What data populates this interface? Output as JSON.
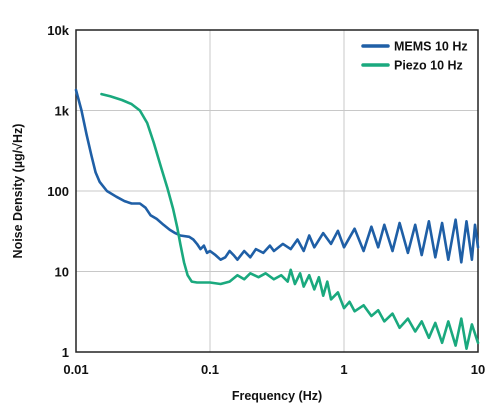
{
  "chart_data": {
    "type": "line",
    "xlabel": "Frequency (Hz)",
    "ylabel": "Noise Density (µg/√Hz)",
    "x_scale": "log",
    "y_scale": "log",
    "xlim": [
      0.01,
      10
    ],
    "ylim": [
      1,
      10000
    ],
    "grid": true,
    "legend_position": "top-right",
    "x_ticks": [
      {
        "value": 0.01,
        "label": "0.01"
      },
      {
        "value": 0.1,
        "label": "0.1"
      },
      {
        "value": 1,
        "label": "1"
      },
      {
        "value": 10,
        "label": "10"
      }
    ],
    "y_ticks": [
      {
        "value": 1,
        "label": "1"
      },
      {
        "value": 10,
        "label": "10"
      },
      {
        "value": 100,
        "label": "100"
      },
      {
        "value": 1000,
        "label": "1k"
      },
      {
        "value": 10000,
        "label": "10k"
      }
    ],
    "series": [
      {
        "name": "MEMS 10 Hz",
        "color": "#1f5fa6",
        "points": [
          [
            0.01,
            1800
          ],
          [
            0.011,
            1000
          ],
          [
            0.012,
            500
          ],
          [
            0.013,
            280
          ],
          [
            0.014,
            170
          ],
          [
            0.015,
            130
          ],
          [
            0.017,
            100
          ],
          [
            0.02,
            85
          ],
          [
            0.023,
            75
          ],
          [
            0.026,
            70
          ],
          [
            0.03,
            70
          ],
          [
            0.033,
            62
          ],
          [
            0.036,
            50
          ],
          [
            0.04,
            45
          ],
          [
            0.045,
            38
          ],
          [
            0.05,
            33
          ],
          [
            0.055,
            30
          ],
          [
            0.06,
            28
          ],
          [
            0.07,
            27
          ],
          [
            0.075,
            25
          ],
          [
            0.08,
            22
          ],
          [
            0.085,
            19
          ],
          [
            0.09,
            21
          ],
          [
            0.095,
            17
          ],
          [
            0.1,
            18
          ],
          [
            0.11,
            16
          ],
          [
            0.12,
            14
          ],
          [
            0.13,
            15
          ],
          [
            0.14,
            18
          ],
          [
            0.15,
            16
          ],
          [
            0.16,
            14
          ],
          [
            0.18,
            18
          ],
          [
            0.2,
            15
          ],
          [
            0.22,
            19
          ],
          [
            0.25,
            17
          ],
          [
            0.28,
            21
          ],
          [
            0.3,
            18
          ],
          [
            0.35,
            22
          ],
          [
            0.4,
            19
          ],
          [
            0.45,
            25
          ],
          [
            0.5,
            18
          ],
          [
            0.55,
            28
          ],
          [
            0.6,
            20
          ],
          [
            0.7,
            30
          ],
          [
            0.8,
            22
          ],
          [
            0.9,
            32
          ],
          [
            1.0,
            20
          ],
          [
            1.2,
            34
          ],
          [
            1.4,
            18
          ],
          [
            1.6,
            36
          ],
          [
            1.8,
            20
          ],
          [
            2.0,
            38
          ],
          [
            2.3,
            18
          ],
          [
            2.6,
            40
          ],
          [
            3.0,
            17
          ],
          [
            3.4,
            38
          ],
          [
            3.8,
            16
          ],
          [
            4.3,
            42
          ],
          [
            4.8,
            15
          ],
          [
            5.4,
            40
          ],
          [
            6.0,
            14
          ],
          [
            6.8,
            44
          ],
          [
            7.5,
            13
          ],
          [
            8.2,
            42
          ],
          [
            9.0,
            14
          ],
          [
            9.5,
            38
          ],
          [
            10,
            20
          ]
        ]
      },
      {
        "name": "Piezo 10 Hz",
        "color": "#1aa97e",
        "points": [
          [
            0.0155,
            1600
          ],
          [
            0.018,
            1500
          ],
          [
            0.022,
            1350
          ],
          [
            0.026,
            1200
          ],
          [
            0.03,
            1000
          ],
          [
            0.034,
            700
          ],
          [
            0.038,
            400
          ],
          [
            0.043,
            200
          ],
          [
            0.048,
            110
          ],
          [
            0.053,
            60
          ],
          [
            0.057,
            35
          ],
          [
            0.06,
            22
          ],
          [
            0.064,
            13
          ],
          [
            0.068,
            9
          ],
          [
            0.073,
            7.5
          ],
          [
            0.08,
            7.3
          ],
          [
            0.1,
            7.3
          ],
          [
            0.12,
            7.0
          ],
          [
            0.14,
            7.5
          ],
          [
            0.16,
            9
          ],
          [
            0.18,
            8
          ],
          [
            0.2,
            9.5
          ],
          [
            0.23,
            8.5
          ],
          [
            0.26,
            9.5
          ],
          [
            0.3,
            8.0
          ],
          [
            0.34,
            9.0
          ],
          [
            0.38,
            7.5
          ],
          [
            0.4,
            10.5
          ],
          [
            0.43,
            7.0
          ],
          [
            0.47,
            9.5
          ],
          [
            0.5,
            6.5
          ],
          [
            0.55,
            9.0
          ],
          [
            0.6,
            6.0
          ],
          [
            0.65,
            8.5
          ],
          [
            0.7,
            5.0
          ],
          [
            0.75,
            7.5
          ],
          [
            0.8,
            4.5
          ],
          [
            0.9,
            5.5
          ],
          [
            1.0,
            3.5
          ],
          [
            1.1,
            4.2
          ],
          [
            1.2,
            3.2
          ],
          [
            1.4,
            3.8
          ],
          [
            1.6,
            2.8
          ],
          [
            1.8,
            3.3
          ],
          [
            2.0,
            2.4
          ],
          [
            2.3,
            3.0
          ],
          [
            2.6,
            2.0
          ],
          [
            3.0,
            2.6
          ],
          [
            3.4,
            1.8
          ],
          [
            3.8,
            2.4
          ],
          [
            4.3,
            1.5
          ],
          [
            4.8,
            2.3
          ],
          [
            5.4,
            1.3
          ],
          [
            6.0,
            2.4
          ],
          [
            6.8,
            1.2
          ],
          [
            7.5,
            2.6
          ],
          [
            8.2,
            1.1
          ],
          [
            9.0,
            2.2
          ],
          [
            10,
            1.3
          ]
        ]
      }
    ]
  }
}
